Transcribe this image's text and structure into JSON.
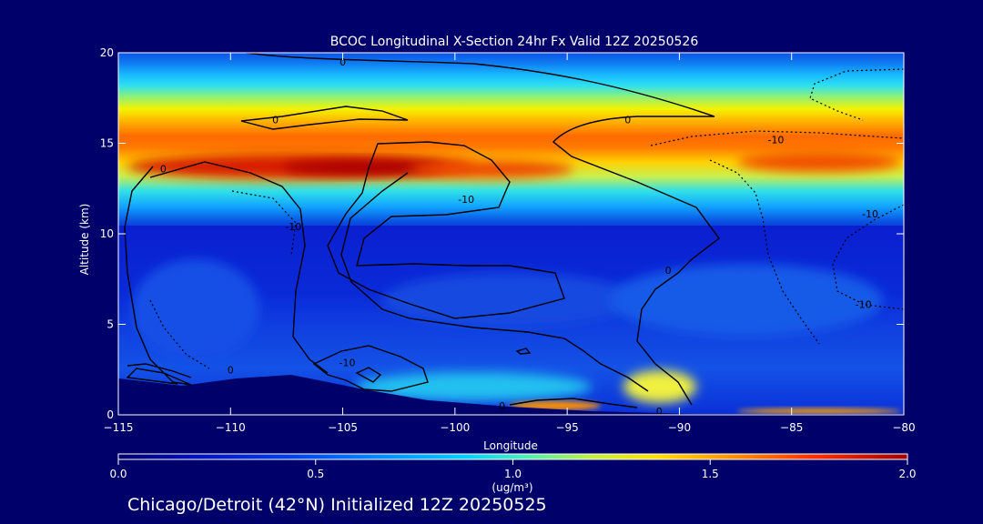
{
  "chart_data": {
    "type": "heatmap",
    "title": "BCOC Longitudinal X-Section 24hr  Fx Valid 12Z 20250526",
    "xlabel": "Longitude",
    "ylabel": "Altitude (km)",
    "xlim": [
      -115,
      -80
    ],
    "ylim": [
      0,
      20
    ],
    "x_ticks": [
      "-115",
      "-110",
      "-105",
      "-100",
      "-95",
      "-90",
      "-85",
      "-80"
    ],
    "y_ticks": [
      "0",
      "5",
      "10",
      "15",
      "20"
    ],
    "colorbar": {
      "min": 0.0,
      "max": 2.0,
      "ticks": [
        "0.0",
        "0.5",
        "1.0",
        "1.5",
        "2.0"
      ],
      "units": "(ug/m³)"
    },
    "features": [
      {
        "name": "upper maximum",
        "lon_range": [
          -112,
          -100
        ],
        "alt": 13.8,
        "value": 2.0
      },
      {
        "name": "upper band",
        "lon_range": [
          -115,
          -80
        ],
        "alt": 13.8,
        "value": 1.5
      },
      {
        "name": "eastern band",
        "lon_range": [
          -88,
          -80
        ],
        "alt": 13.9,
        "value": 1.8
      },
      {
        "name": "surface maximum",
        "lon_range": [
          -97,
          -92
        ],
        "alt": 0.3,
        "value": 1.9
      },
      {
        "name": "surface east",
        "lon_range": [
          -87,
          -80
        ],
        "alt": 0.1,
        "value": 1.7
      }
    ],
    "contour_labels": [
      {
        "text": "0",
        "lon": -105,
        "alt": 19.5
      },
      {
        "text": "0",
        "lon": -108,
        "alt": 16.3
      },
      {
        "text": "0",
        "lon": -92.3,
        "alt": 16.3
      },
      {
        "text": "0",
        "lon": -113,
        "alt": 13.6
      },
      {
        "text": "-10",
        "lon": -85.7,
        "alt": 15.2
      },
      {
        "text": "-10",
        "lon": -99.5,
        "alt": 11.9
      },
      {
        "text": "-10",
        "lon": -107.2,
        "alt": 10.4
      },
      {
        "text": "-10",
        "lon": -81.5,
        "alt": 11.1
      },
      {
        "text": "0",
        "lon": -90.5,
        "alt": 8.0
      },
      {
        "text": "-10",
        "lon": -81.8,
        "alt": 6.1
      },
      {
        "text": "-10",
        "lon": -104.8,
        "alt": 2.9
      },
      {
        "text": "0",
        "lon": -110,
        "alt": 2.5
      },
      {
        "text": "0",
        "lon": -97.9,
        "alt": 0.5
      },
      {
        "text": "0",
        "lon": -90.9,
        "alt": 0.2
      }
    ]
  },
  "footer": "Chicago/Detroit (42°N) Initialized 12Z 20250525"
}
